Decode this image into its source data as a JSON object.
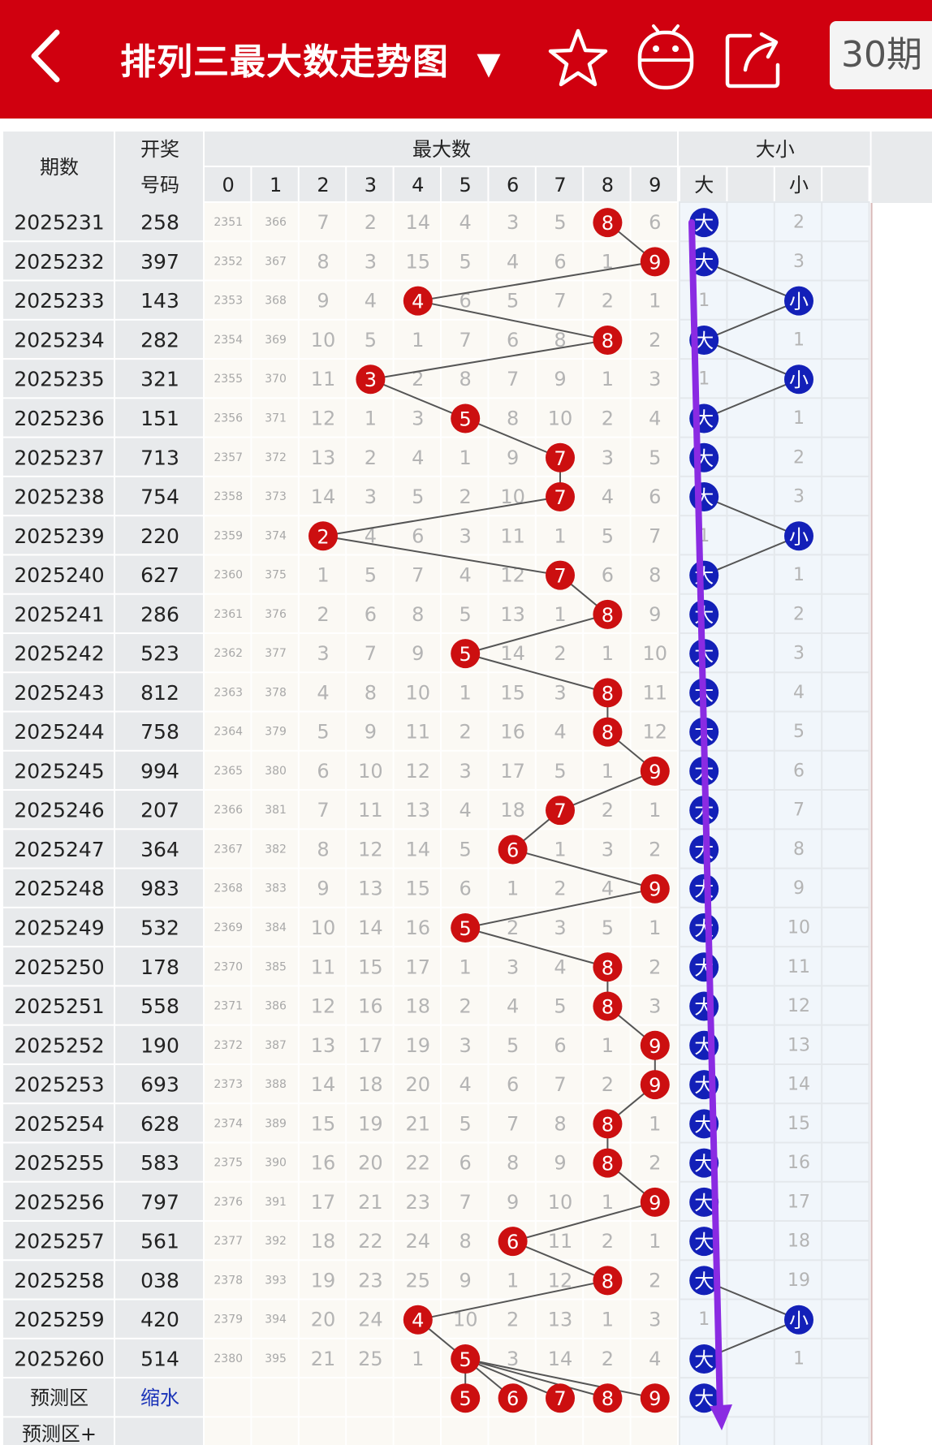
{
  "header": {
    "title": "排列三最大数走势图",
    "title_arrow": "▼",
    "period_button": "30期",
    "icons": [
      "back-icon",
      "star-icon",
      "robot-icon",
      "share-icon"
    ]
  },
  "table": {
    "col_issue": "期数",
    "col_draw_l1": "开奖",
    "col_draw_l2": "号码",
    "group_max": "最大数",
    "group_size": "大小",
    "digit_headers": [
      "0",
      "1",
      "2",
      "3",
      "4",
      "5",
      "6",
      "7",
      "8",
      "9"
    ],
    "size_headers": [
      "大",
      "小"
    ],
    "rows": [
      {
        "issue": "2025231",
        "draw": "258",
        "max": 8,
        "size": "大",
        "size_miss": "2",
        "miss": [
          "2351",
          "366",
          "7",
          "2",
          "14",
          "4",
          "3",
          "5",
          "8",
          "6"
        ]
      },
      {
        "issue": "2025232",
        "draw": "397",
        "max": 9,
        "size": "大",
        "size_miss": "3",
        "miss": [
          "2352",
          "367",
          "8",
          "3",
          "15",
          "5",
          "4",
          "6",
          "1",
          "9"
        ]
      },
      {
        "issue": "2025233",
        "draw": "143",
        "max": 4,
        "size": "小",
        "size_miss": "1",
        "miss": [
          "2353",
          "368",
          "9",
          "4",
          "4",
          "6",
          "5",
          "7",
          "2",
          "1"
        ]
      },
      {
        "issue": "2025234",
        "draw": "282",
        "max": 8,
        "size": "大",
        "size_miss": "1",
        "miss": [
          "2354",
          "369",
          "10",
          "5",
          "1",
          "7",
          "6",
          "8",
          "8",
          "2"
        ]
      },
      {
        "issue": "2025235",
        "draw": "321",
        "max": 3,
        "size": "小",
        "size_miss": "1",
        "miss": [
          "2355",
          "370",
          "11",
          "3",
          "2",
          "8",
          "7",
          "9",
          "1",
          "3"
        ]
      },
      {
        "issue": "2025236",
        "draw": "151",
        "max": 5,
        "size": "大",
        "size_miss": "1",
        "miss": [
          "2356",
          "371",
          "12",
          "1",
          "3",
          "5",
          "8",
          "10",
          "2",
          "4"
        ]
      },
      {
        "issue": "2025237",
        "draw": "713",
        "max": 7,
        "size": "大",
        "size_miss": "2",
        "miss": [
          "2357",
          "372",
          "13",
          "2",
          "4",
          "1",
          "9",
          "7",
          "3",
          "5"
        ]
      },
      {
        "issue": "2025238",
        "draw": "754",
        "max": 7,
        "size": "大",
        "size_miss": "3",
        "miss": [
          "2358",
          "373",
          "14",
          "3",
          "5",
          "2",
          "10",
          "7",
          "4",
          "6"
        ]
      },
      {
        "issue": "2025239",
        "draw": "220",
        "max": 2,
        "size": "小",
        "size_miss": "1",
        "miss": [
          "2359",
          "374",
          "2",
          "4",
          "6",
          "3",
          "11",
          "1",
          "5",
          "7"
        ]
      },
      {
        "issue": "2025240",
        "draw": "627",
        "max": 7,
        "size": "大",
        "size_miss": "1",
        "miss": [
          "2360",
          "375",
          "1",
          "5",
          "7",
          "4",
          "12",
          "7",
          "6",
          "8"
        ]
      },
      {
        "issue": "2025241",
        "draw": "286",
        "max": 8,
        "size": "大",
        "size_miss": "2",
        "miss": [
          "2361",
          "376",
          "2",
          "6",
          "8",
          "5",
          "13",
          "1",
          "8",
          "9"
        ]
      },
      {
        "issue": "2025242",
        "draw": "523",
        "max": 5,
        "size": "大",
        "size_miss": "3",
        "miss": [
          "2362",
          "377",
          "3",
          "7",
          "9",
          "5",
          "14",
          "2",
          "1",
          "10"
        ]
      },
      {
        "issue": "2025243",
        "draw": "812",
        "max": 8,
        "size": "大",
        "size_miss": "4",
        "miss": [
          "2363",
          "378",
          "4",
          "8",
          "10",
          "1",
          "15",
          "3",
          "8",
          "11"
        ]
      },
      {
        "issue": "2025244",
        "draw": "758",
        "max": 8,
        "size": "大",
        "size_miss": "5",
        "miss": [
          "2364",
          "379",
          "5",
          "9",
          "11",
          "2",
          "16",
          "4",
          "8",
          "12"
        ]
      },
      {
        "issue": "2025245",
        "draw": "994",
        "max": 9,
        "size": "大",
        "size_miss": "6",
        "miss": [
          "2365",
          "380",
          "6",
          "10",
          "12",
          "3",
          "17",
          "5",
          "1",
          "9"
        ]
      },
      {
        "issue": "2025246",
        "draw": "207",
        "max": 7,
        "size": "大",
        "size_miss": "7",
        "miss": [
          "2366",
          "381",
          "7",
          "11",
          "13",
          "4",
          "18",
          "7",
          "2",
          "1"
        ]
      },
      {
        "issue": "2025247",
        "draw": "364",
        "max": 6,
        "size": "大",
        "size_miss": "8",
        "miss": [
          "2367",
          "382",
          "8",
          "12",
          "14",
          "5",
          "6",
          "1",
          "3",
          "2"
        ]
      },
      {
        "issue": "2025248",
        "draw": "983",
        "max": 9,
        "size": "大",
        "size_miss": "9",
        "miss": [
          "2368",
          "383",
          "9",
          "13",
          "15",
          "6",
          "1",
          "2",
          "4",
          "9"
        ]
      },
      {
        "issue": "2025249",
        "draw": "532",
        "max": 5,
        "size": "大",
        "size_miss": "10",
        "miss": [
          "2369",
          "384",
          "10",
          "14",
          "16",
          "5",
          "2",
          "3",
          "5",
          "1"
        ]
      },
      {
        "issue": "2025250",
        "draw": "178",
        "max": 8,
        "size": "大",
        "size_miss": "11",
        "miss": [
          "2370",
          "385",
          "11",
          "15",
          "17",
          "1",
          "3",
          "4",
          "8",
          "2"
        ]
      },
      {
        "issue": "2025251",
        "draw": "558",
        "max": 8,
        "size": "大",
        "size_miss": "12",
        "miss": [
          "2371",
          "386",
          "12",
          "16",
          "18",
          "2",
          "4",
          "5",
          "8",
          "3"
        ]
      },
      {
        "issue": "2025252",
        "draw": "190",
        "max": 9,
        "size": "大",
        "size_miss": "13",
        "miss": [
          "2372",
          "387",
          "13",
          "17",
          "19",
          "3",
          "5",
          "6",
          "1",
          "9"
        ]
      },
      {
        "issue": "2025253",
        "draw": "693",
        "max": 9,
        "size": "大",
        "size_miss": "14",
        "miss": [
          "2373",
          "388",
          "14",
          "18",
          "20",
          "4",
          "6",
          "7",
          "2",
          "9"
        ]
      },
      {
        "issue": "2025254",
        "draw": "628",
        "max": 8,
        "size": "大",
        "size_miss": "15",
        "miss": [
          "2374",
          "389",
          "15",
          "19",
          "21",
          "5",
          "7",
          "8",
          "8",
          "1"
        ]
      },
      {
        "issue": "2025255",
        "draw": "583",
        "max": 8,
        "size": "大",
        "size_miss": "16",
        "miss": [
          "2375",
          "390",
          "16",
          "20",
          "22",
          "6",
          "8",
          "9",
          "8",
          "2"
        ]
      },
      {
        "issue": "2025256",
        "draw": "797",
        "max": 9,
        "size": "大",
        "size_miss": "17",
        "miss": [
          "2376",
          "391",
          "17",
          "21",
          "23",
          "7",
          "9",
          "10",
          "1",
          "9"
        ]
      },
      {
        "issue": "2025257",
        "draw": "561",
        "max": 6,
        "size": "大",
        "size_miss": "18",
        "miss": [
          "2377",
          "392",
          "18",
          "22",
          "24",
          "8",
          "6",
          "11",
          "2",
          "1"
        ]
      },
      {
        "issue": "2025258",
        "draw": "038",
        "max": 8,
        "size": "大",
        "size_miss": "19",
        "miss": [
          "2378",
          "393",
          "19",
          "23",
          "25",
          "9",
          "1",
          "12",
          "8",
          "2"
        ]
      },
      {
        "issue": "2025259",
        "draw": "420",
        "max": 4,
        "size": "小",
        "size_miss": "1",
        "miss": [
          "2379",
          "394",
          "20",
          "24",
          "4",
          "10",
          "2",
          "13",
          "1",
          "3"
        ]
      },
      {
        "issue": "2025260",
        "draw": "514",
        "max": 5,
        "size": "大",
        "size_miss": "1",
        "miss": [
          "2380",
          "395",
          "21",
          "25",
          "1",
          "5",
          "3",
          "14",
          "2",
          "4"
        ]
      }
    ],
    "predict": {
      "label": "预测区",
      "link": "缩水",
      "balls": [
        5,
        6,
        7,
        8,
        9
      ],
      "size": "大"
    },
    "predict_plus_label": "预测区+"
  },
  "colors": {
    "brand_red": "#d0000f",
    "ball_red": "#cc0f10",
    "ball_blue": "#1320b8",
    "arrow_purple": "#8a2be2",
    "header_bg": "#e8eaec",
    "row_alt_bg": "#fbf9f4",
    "size_bg": "#f1f6fb"
  }
}
